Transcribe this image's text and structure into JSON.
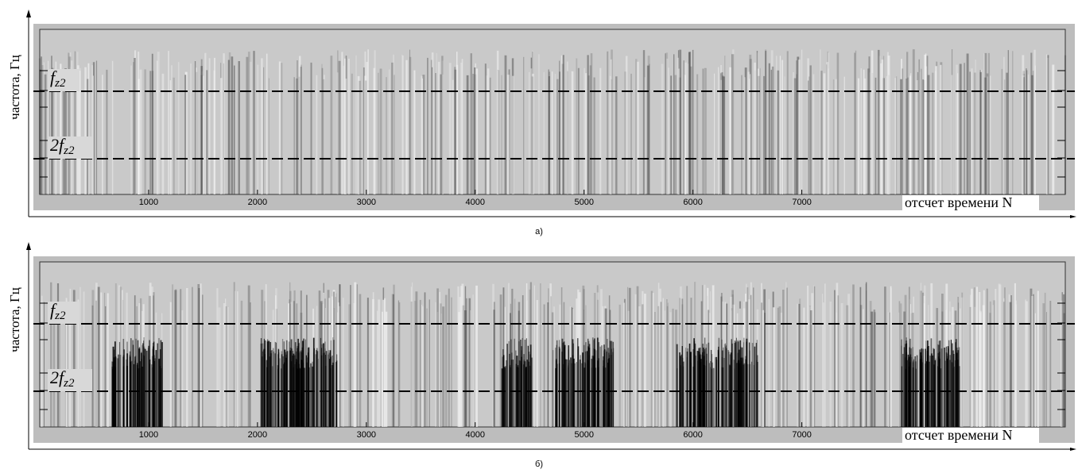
{
  "chart_data": [
    {
      "type": "spectrogram",
      "ylabel": "частота, Гц",
      "xlabel": "отсчет времени N",
      "caption": "а)",
      "xlim": [
        0,
        9420
      ],
      "xticks": [
        1000,
        2000,
        3000,
        4000,
        5000,
        6000,
        7000
      ],
      "annotations": [
        {
          "main": "f",
          "sub": "z2"
        },
        {
          "main": "2f",
          "sub": "z2"
        }
      ]
    },
    {
      "type": "spectrogram",
      "ylabel": "частота, Гц",
      "xlabel": "отсчет времени N",
      "caption": "б)",
      "xlim": [
        0,
        9420
      ],
      "xticks": [
        1000,
        2000,
        3000,
        4000,
        5000,
        6000,
        7000
      ],
      "annotations": [
        {
          "main": "f",
          "sub": "z2"
        },
        {
          "main": "2f",
          "sub": "z2"
        }
      ]
    }
  ]
}
